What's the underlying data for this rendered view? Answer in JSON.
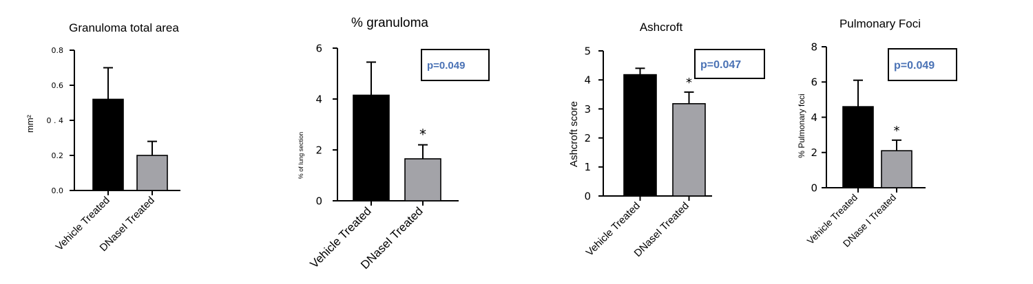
{
  "colors": {
    "vehicle": "#000000",
    "dnase": "#a3a3a8",
    "pvalue": "#4a72b5"
  },
  "chart_data": [
    {
      "type": "bar",
      "title": "Granuloma total area",
      "ylabel": "mm²",
      "ylim": [
        0,
        0.8
      ],
      "yticks": [
        "0.0",
        "0.2",
        "0 . 4",
        "0.6",
        "0.8"
      ],
      "categories": [
        "Vehicle Treated",
        "DNaseI Treated"
      ],
      "values": [
        0.52,
        0.2
      ],
      "errors": [
        0.18,
        0.08
      ],
      "significance": [
        "",
        ""
      ],
      "pvalue": "",
      "grid": false
    },
    {
      "type": "bar",
      "title": "% granuloma",
      "ylabel": "% of lung section",
      "ylim": [
        0,
        6
      ],
      "yticks": [
        "0",
        "2",
        "4",
        "6"
      ],
      "categories": [
        "Vehicle Treated",
        "DNaseI Treated"
      ],
      "values": [
        4.15,
        1.65
      ],
      "errors": [
        1.3,
        0.55
      ],
      "significance": [
        "",
        "*"
      ],
      "pvalue": "p=0.049",
      "grid": false
    },
    {
      "type": "bar",
      "title": "Ashcroft",
      "ylabel": "Ashcroft score",
      "ylim": [
        0,
        5
      ],
      "yticks": [
        "0",
        "1",
        "2",
        "3",
        "4",
        "5"
      ],
      "categories": [
        "Vehicle Treated",
        "DNaseI Treated"
      ],
      "values": [
        4.18,
        3.18
      ],
      "errors": [
        0.22,
        0.4
      ],
      "significance": [
        "",
        "*"
      ],
      "pvalue": "p=0.047",
      "grid": false
    },
    {
      "type": "bar",
      "title": "Pulmonary Foci",
      "ylabel": "% Pulmonary foci",
      "ylim": [
        0,
        8
      ],
      "yticks": [
        "0",
        "2",
        "4",
        "6",
        "8"
      ],
      "categories": [
        "Vehicle Treated",
        "DNase I Treated"
      ],
      "values": [
        4.6,
        2.1
      ],
      "errors": [
        1.5,
        0.6
      ],
      "significance": [
        "",
        "*"
      ],
      "pvalue": "p=0.049",
      "grid": false
    }
  ]
}
